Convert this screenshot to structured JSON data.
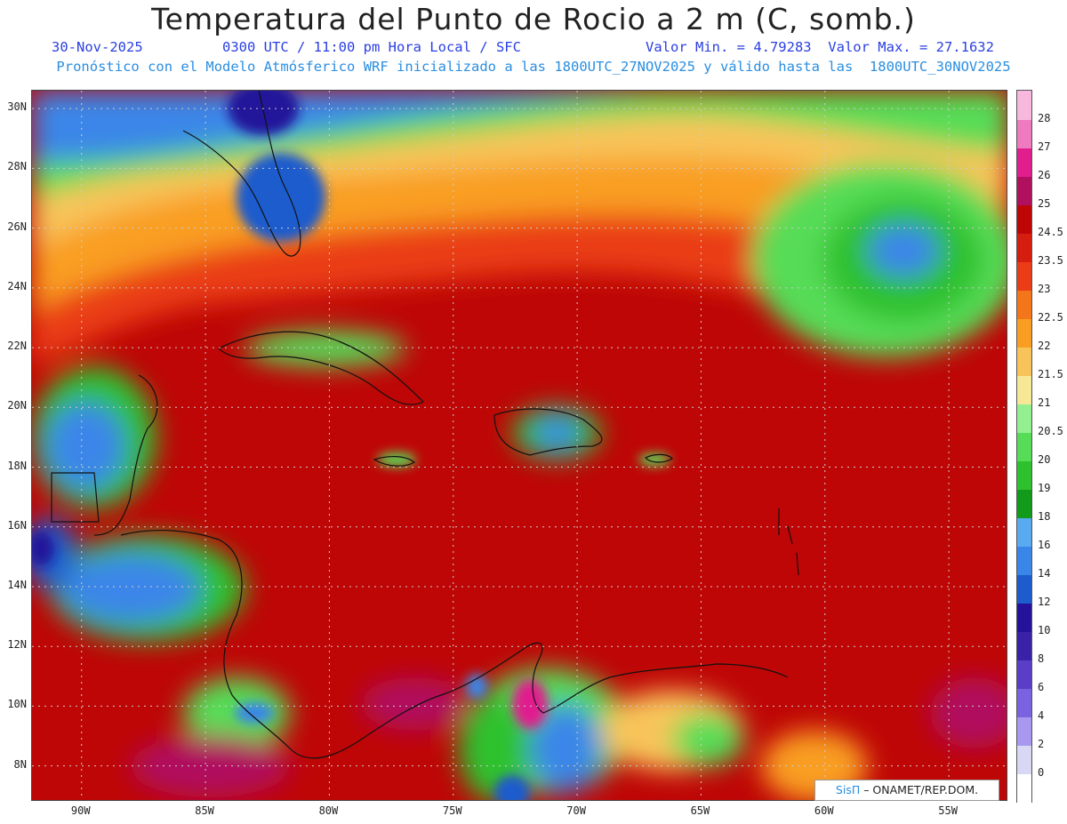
{
  "header": {
    "title": "Temperatura del Punto de Rocio a 2 m (C, somb.)",
    "date": "30-Nov-2025",
    "time": "0300 UTC / 11:00 pm Hora Local / SFC",
    "minmax": "Valor Min. = 4.79283  Valor Max. = 27.1632",
    "model_line": "Pronóstico con el Modelo Atmósferico WRF inicializado a las 1800UTC_27NOV2025 y válido hasta las  1800UTC_30NOV2025"
  },
  "map": {
    "lat_labels": [
      "30N",
      "28N",
      "26N",
      "24N",
      "22N",
      "20N",
      "18N",
      "16N",
      "14N",
      "12N",
      "10N",
      "8N"
    ],
    "lon_labels": [
      "90W",
      "85W",
      "80W",
      "75W",
      "70W",
      "65W",
      "60W",
      "55W"
    ],
    "lat_range": [
      6.8,
      30.6
    ],
    "lon_range": [
      -92.0,
      -52.6
    ],
    "grid": true
  },
  "legend": {
    "levels": [
      "0",
      "2",
      "4",
      "6",
      "8",
      "10",
      "12",
      "14",
      "16",
      "18",
      "19",
      "20",
      "20.5",
      "21",
      "21.5",
      "22",
      "22.5",
      "23",
      "23.5",
      "24.5",
      "25",
      "26",
      "27",
      "28"
    ],
    "colors": [
      "#ffffff",
      "#d8d8f5",
      "#a898f0",
      "#7a62e0",
      "#5a3ec8",
      "#3a22a8",
      "#24129a",
      "#1e5ccd",
      "#3a86e8",
      "#5aaaf2",
      "#129a1a",
      "#2ec12e",
      "#56dc56",
      "#94ef90",
      "#f7e896",
      "#f8c45a",
      "#f99e22",
      "#f4761a",
      "#ea3c16",
      "#d61e10",
      "#be0606",
      "#b0105e",
      "#e01e8e",
      "#f07ac0",
      "#f6b8dc"
    ]
  },
  "credit": {
    "brand": "SisΠ",
    "text": " – ONAMET/REP.DOM."
  },
  "palette": {
    "ocean_warm": "#c8100a",
    "ocean_hot": "#d81e10",
    "land_line": "#111111"
  }
}
